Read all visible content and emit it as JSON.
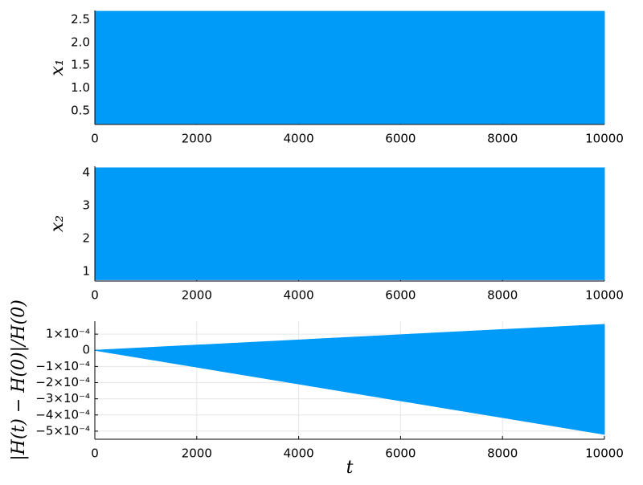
{
  "chart_data": [
    {
      "type": "band",
      "ylabel": "x₁",
      "x": [
        0,
        10000
      ],
      "lower": [
        0.22,
        0.22
      ],
      "upper": [
        2.68,
        2.68
      ],
      "color": "#009af9",
      "xlim": [
        0,
        10000
      ],
      "xticks": [
        0,
        2000,
        4000,
        6000,
        8000,
        10000
      ],
      "ylim": [
        0.2,
        2.7
      ],
      "yticks": [
        0.5,
        {
          "value": 1,
          "label": "1.0"
        },
        1.5,
        {
          "value": 2,
          "label": "2.0"
        },
        2.5
      ],
      "grid": false
    },
    {
      "type": "band",
      "ylabel": "x₂",
      "x": [
        0,
        10000
      ],
      "lower": [
        0.75,
        0.75
      ],
      "upper": [
        4.15,
        4.15
      ],
      "color": "#009af9",
      "xlim": [
        0,
        10000
      ],
      "xticks": [
        0,
        2000,
        4000,
        6000,
        8000,
        10000
      ],
      "ylim": [
        0.71,
        4.2
      ],
      "yticks": [
        1,
        2,
        3,
        4
      ],
      "grid": false
    },
    {
      "type": "band",
      "ylabel": "|H(t) − H(0)|/H(0)",
      "xlabel": "t",
      "x": [
        0,
        10000
      ],
      "lower": [
        0,
        -0.00052
      ],
      "upper": [
        0,
        0.00016
      ],
      "color": "#009af9",
      "xlim": [
        0,
        10000
      ],
      "xticks": [
        0,
        2000,
        4000,
        6000,
        8000,
        10000
      ],
      "ylim": [
        -0.00055,
        0.00018
      ],
      "yticks": [
        {
          "value": 0.0001,
          "label": "1×10⁻⁴"
        },
        0,
        {
          "value": -0.0001,
          "label": "−1×10⁻⁴"
        },
        {
          "value": -0.0002,
          "label": "−2×10⁻⁴"
        },
        {
          "value": -0.0003,
          "label": "−3×10⁻⁴"
        },
        {
          "value": -0.0004,
          "label": "−4×10⁻⁴"
        },
        {
          "value": -0.0005,
          "label": "−5×10⁻⁴"
        }
      ],
      "grid": true
    }
  ]
}
